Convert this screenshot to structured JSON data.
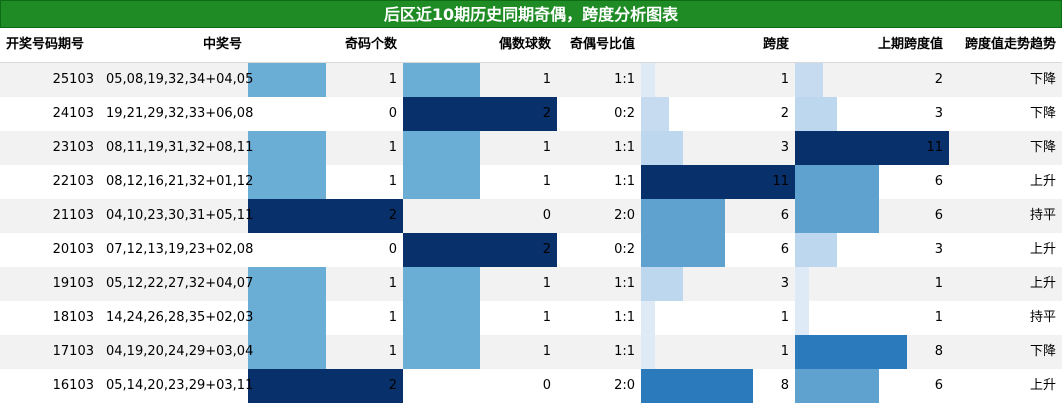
{
  "title": "后区近10期历史同期奇偶，跨度分析图表",
  "headers": {
    "issue": "开奖号码期号",
    "numbers": "中奖号",
    "odd_count": "奇码个数",
    "even_count": "偶数球数",
    "ratio": "奇偶号比值",
    "span": "跨度",
    "prev_span": "上期跨度值",
    "trend": "跨度值走势趋势"
  },
  "colors": {
    "title_bg": "#1e8b24",
    "row_alt": "#f2f2f2",
    "count_0": "#ffffff",
    "count_1": "#6aaed6",
    "count_2": "#08306b",
    "span_1": "#deebf7",
    "span_2": "#c6dbef",
    "span_3": "#bdd7ee",
    "span_6": "#5fa2d0",
    "span_8": "#2b7abb",
    "span_11": "#08306b"
  },
  "scales": {
    "count_max": 2,
    "span_max": 11
  },
  "rows": [
    {
      "issue": "25103",
      "numbers": "05,08,19,32,34+04,05",
      "odd": "1",
      "even": "1",
      "ratio": "1:1",
      "span": "1",
      "prev_span": "2",
      "trend": "下降"
    },
    {
      "issue": "24103",
      "numbers": "19,21,29,32,33+06,08",
      "odd": "0",
      "even": "2",
      "ratio": "0:2",
      "span": "2",
      "prev_span": "3",
      "trend": "下降"
    },
    {
      "issue": "23103",
      "numbers": "08,11,19,31,32+08,11",
      "odd": "1",
      "even": "1",
      "ratio": "1:1",
      "span": "3",
      "prev_span": "11",
      "trend": "下降"
    },
    {
      "issue": "22103",
      "numbers": "08,12,16,21,32+01,12",
      "odd": "1",
      "even": "1",
      "ratio": "1:1",
      "span": "11",
      "prev_span": "6",
      "trend": "上升"
    },
    {
      "issue": "21103",
      "numbers": "04,10,23,30,31+05,11",
      "odd": "2",
      "even": "0",
      "ratio": "2:0",
      "span": "6",
      "prev_span": "6",
      "trend": "持平"
    },
    {
      "issue": "20103",
      "numbers": "07,12,13,19,23+02,08",
      "odd": "0",
      "even": "2",
      "ratio": "0:2",
      "span": "6",
      "prev_span": "3",
      "trend": "上升"
    },
    {
      "issue": "19103",
      "numbers": "05,12,22,27,32+04,07",
      "odd": "1",
      "even": "1",
      "ratio": "1:1",
      "span": "3",
      "prev_span": "1",
      "trend": "上升"
    },
    {
      "issue": "18103",
      "numbers": "14,24,26,28,35+02,03",
      "odd": "1",
      "even": "1",
      "ratio": "1:1",
      "span": "1",
      "prev_span": "1",
      "trend": "持平"
    },
    {
      "issue": "17103",
      "numbers": "04,19,20,24,29+03,04",
      "odd": "1",
      "even": "1",
      "ratio": "1:1",
      "span": "1",
      "prev_span": "8",
      "trend": "下降"
    },
    {
      "issue": "16103",
      "numbers": "05,14,20,23,29+03,11",
      "odd": "2",
      "even": "0",
      "ratio": "2:0",
      "span": "8",
      "prev_span": "6",
      "trend": "上升"
    }
  ]
}
